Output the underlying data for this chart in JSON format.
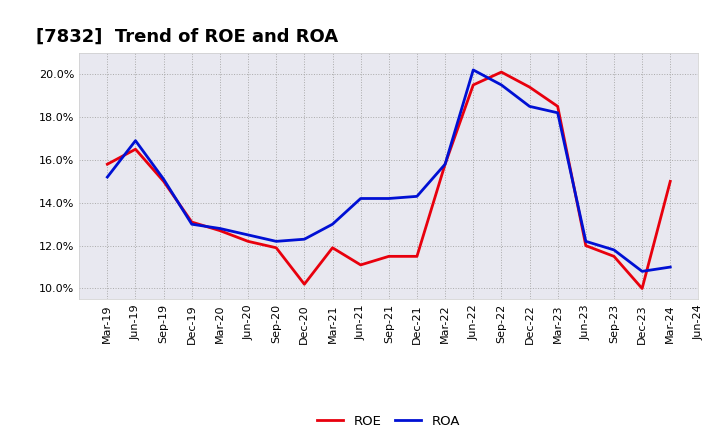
{
  "title": "[7832]  Trend of ROE and ROA",
  "x_labels": [
    "Mar-19",
    "Jun-19",
    "Sep-19",
    "Dec-19",
    "Mar-20",
    "Jun-20",
    "Sep-20",
    "Dec-20",
    "Mar-21",
    "Jun-21",
    "Sep-21",
    "Dec-21",
    "Mar-22",
    "Jun-22",
    "Sep-22",
    "Dec-22",
    "Mar-23",
    "Jun-23",
    "Sep-23",
    "Dec-23",
    "Mar-24",
    "Jun-24"
  ],
  "roe": [
    15.8,
    16.5,
    15.0,
    13.1,
    12.7,
    12.2,
    11.9,
    10.2,
    11.9,
    11.1,
    11.5,
    11.5,
    15.8,
    19.5,
    20.1,
    19.4,
    18.5,
    12.0,
    11.5,
    10.0,
    15.0,
    null
  ],
  "roa": [
    15.2,
    16.9,
    15.1,
    13.0,
    12.8,
    12.5,
    12.2,
    12.3,
    13.0,
    14.2,
    14.2,
    14.3,
    15.8,
    20.2,
    19.5,
    18.5,
    18.2,
    12.2,
    11.8,
    10.8,
    11.0,
    null
  ],
  "roe_color": "#e8000d",
  "roa_color": "#0010d4",
  "ylim": [
    9.5,
    21.0
  ],
  "yticks": [
    10.0,
    12.0,
    14.0,
    16.0,
    18.0,
    20.0
  ],
  "background_color": "#ffffff",
  "plot_bg_color": "#e8e8f0",
  "grid_color": "#aaaaaa",
  "title_fontsize": 13,
  "line_width": 2.0,
  "tick_fontsize": 8
}
